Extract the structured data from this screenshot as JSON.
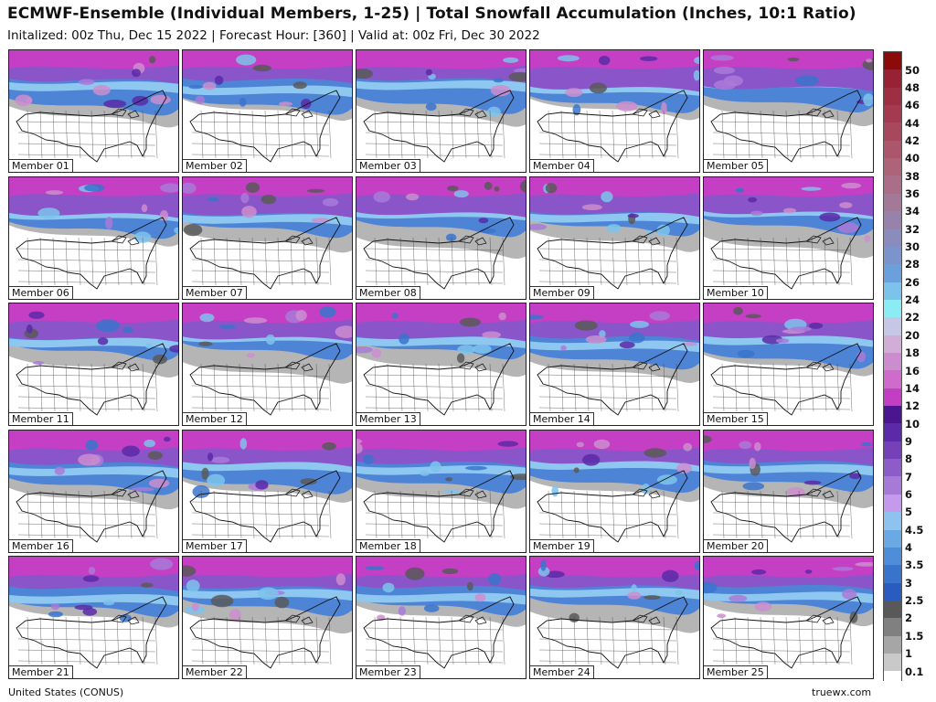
{
  "title": "ECMWF-Ensemble (Individual Members, 1-25) | Total Snowfall Accumulation (Inches, 10:1 Ratio)",
  "subtitle": "Initalized: 00z Thu, Dec 15 2022  |  Forecast Hour: [360]  |  Valid at: 00z Fri, Dec 30 2022",
  "panels": [
    "Member 01",
    "Member 02",
    "Member 03",
    "Member 04",
    "Member 05",
    "Member 06",
    "Member 07",
    "Member 08",
    "Member 09",
    "Member 10",
    "Member 11",
    "Member 12",
    "Member 13",
    "Member 14",
    "Member 15",
    "Member 16",
    "Member 17",
    "Member 18",
    "Member 19",
    "Member 20",
    "Member 21",
    "Member 22",
    "Member 23",
    "Member 24",
    "Member 25"
  ],
  "colorbar": {
    "labels": [
      "50",
      "48",
      "46",
      "44",
      "42",
      "40",
      "38",
      "36",
      "34",
      "32",
      "30",
      "28",
      "26",
      "24",
      "22",
      "20",
      "18",
      "16",
      "14",
      "12",
      "10",
      "9",
      "8",
      "7",
      "6",
      "5",
      "4.5",
      "4",
      "3.5",
      "3",
      "2.5",
      "2",
      "1.5",
      "1",
      "0.1"
    ],
    "colors": [
      "#8b0a0a",
      "#962233",
      "#9e2f42",
      "#a43a4f",
      "#a9485d",
      "#ac566b",
      "#ad6379",
      "#aa6e88",
      "#a27a98",
      "#9782ab",
      "#8a8dbc",
      "#7b94cb",
      "#6aa0db",
      "#7cc3ec",
      "#8cecf4",
      "#c6c6e6",
      "#d0aed6",
      "#cc8dcf",
      "#cf6ccb",
      "#c23fc3",
      "#4b1590",
      "#5b2aa8",
      "#7640b9",
      "#8e5cc8",
      "#a87ad8",
      "#c59aec",
      "#8ec2ef",
      "#6aa9e4",
      "#4e8dd8",
      "#3974cc",
      "#2a5cc0",
      "#595959",
      "#808080",
      "#a6a6a6",
      "#c9c9c9"
    ],
    "zero_color": "#ffffff"
  },
  "footer": {
    "region": "United States (CONUS)",
    "brand": "truewx.com"
  }
}
